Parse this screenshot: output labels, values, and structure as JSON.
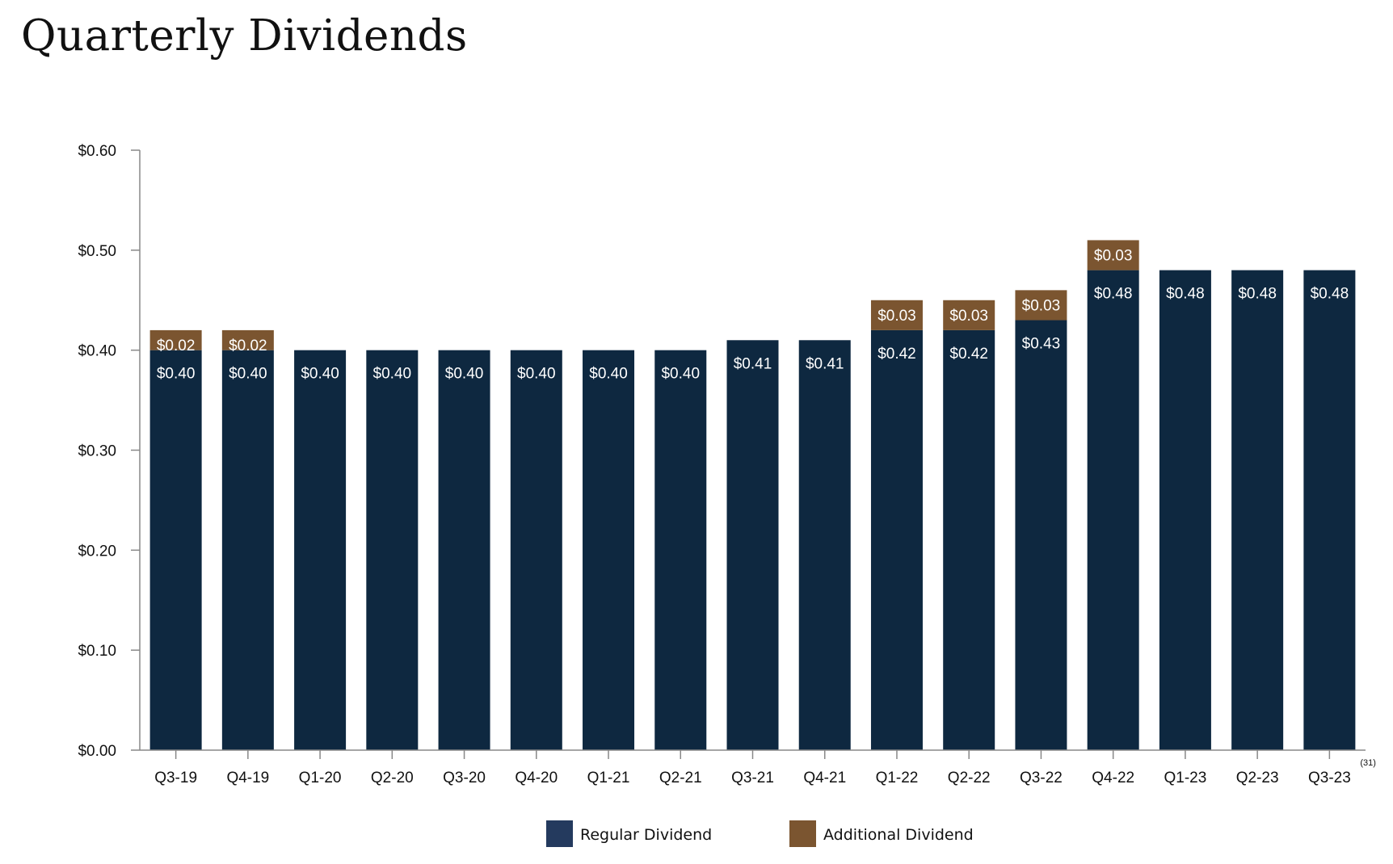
{
  "colors": {
    "regular": "#0e2840",
    "additional": "#7b5530",
    "legend_regular": "#243a5e",
    "axis": "#888888"
  },
  "chart_data": {
    "type": "bar",
    "stacked": true,
    "title": "Quarterly Dividends",
    "categories": [
      "Q3-19",
      "Q4-19",
      "Q1-20",
      "Q2-20",
      "Q3-20",
      "Q4-20",
      "Q1-21",
      "Q2-21",
      "Q3-21",
      "Q4-21",
      "Q1-22",
      "Q2-22",
      "Q3-22",
      "Q4-22",
      "Q1-23",
      "Q2-23",
      "Q3-23"
    ],
    "series": [
      {
        "name": "Regular Dividend",
        "values": [
          0.4,
          0.4,
          0.4,
          0.4,
          0.4,
          0.4,
          0.4,
          0.4,
          0.41,
          0.41,
          0.42,
          0.42,
          0.43,
          0.48,
          0.48,
          0.48,
          0.48
        ],
        "labels": [
          "$0.40",
          "$0.40",
          "$0.40",
          "$0.40",
          "$0.40",
          "$0.40",
          "$0.40",
          "$0.40",
          "$0.41",
          "$0.41",
          "$0.42",
          "$0.42",
          "$0.43",
          "$0.48",
          "$0.48",
          "$0.48",
          "$0.48"
        ]
      },
      {
        "name": "Additional Dividend",
        "values": [
          0.02,
          0.02,
          0,
          0,
          0,
          0,
          0,
          0,
          0,
          0,
          0.03,
          0.03,
          0.03,
          0.03,
          0,
          0,
          0
        ],
        "labels": [
          "$0.02",
          "$0.02",
          "",
          "",
          "",
          "",
          "",
          "",
          "",
          "",
          "$0.03",
          "$0.03",
          "$0.03",
          "$0.03",
          "",
          "",
          ""
        ]
      }
    ],
    "ylim": [
      0,
      0.6
    ],
    "yticks": [
      0,
      0.1,
      0.2,
      0.3,
      0.4,
      0.5,
      0.6
    ],
    "ytick_labels": [
      "$0.00",
      "$0.10",
      "$0.20",
      "$0.30",
      "$0.40",
      "$0.50",
      "$0.60"
    ],
    "footnote": "(31)",
    "legend_position": "bottom-center",
    "grid": false
  }
}
